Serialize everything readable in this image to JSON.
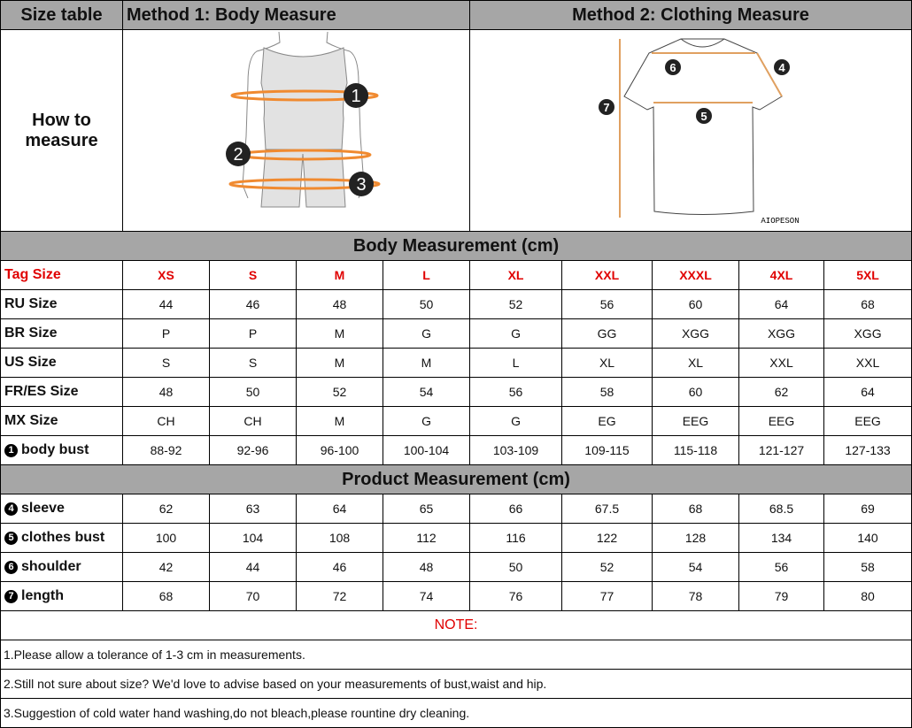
{
  "header": {
    "corner": "Size table",
    "method1": "Method 1: Body  Measure",
    "method2": "Method 2: Clothing Measure",
    "how_to": "How to measure"
  },
  "figure1": {
    "markers": [
      "1",
      "2",
      "3"
    ]
  },
  "figure2": {
    "markers": [
      "4",
      "5",
      "6",
      "7"
    ],
    "brand": "AIOPESON"
  },
  "body_section": "Body Measurement (cm)",
  "product_section": "Product Measurement (cm)",
  "tag_row": {
    "label": "Tag Size",
    "values": [
      "XS",
      "S",
      "M",
      "L",
      "XL",
      "XXL",
      "XXXL",
      "4XL",
      "5XL"
    ]
  },
  "body_rows": [
    {
      "label": "RU Size",
      "values": [
        "44",
        "46",
        "48",
        "50",
        "52",
        "56",
        "60",
        "64",
        "68"
      ]
    },
    {
      "label": "BR Size",
      "values": [
        "P",
        "P",
        "M",
        "G",
        "G",
        "GG",
        "XGG",
        "XGG",
        "XGG"
      ]
    },
    {
      "label": "US Size",
      "values": [
        "S",
        "S",
        "M",
        "M",
        "L",
        "XL",
        "XL",
        "XXL",
        "XXL"
      ]
    },
    {
      "label": "FR/ES Size",
      "values": [
        "48",
        "50",
        "52",
        "54",
        "56",
        "58",
        "60",
        "62",
        "64"
      ]
    },
    {
      "label": "MX Size",
      "values": [
        "CH",
        "CH",
        "M",
        "G",
        "G",
        "EG",
        "EEG",
        "EEG",
        "EEG"
      ]
    },
    {
      "marker": "1",
      "label": "body bust",
      "values": [
        "88-92",
        "92-96",
        "96-100",
        "100-104",
        "103-109",
        "109-115",
        "115-118",
        "121-127",
        "127-133"
      ]
    }
  ],
  "product_rows": [
    {
      "marker": "4",
      "label": "sleeve",
      "values": [
        "62",
        "63",
        "64",
        "65",
        "66",
        "67.5",
        "68",
        "68.5",
        "69"
      ]
    },
    {
      "marker": "5",
      "label": "clothes bust",
      "values": [
        "100",
        "104",
        "108",
        "112",
        "116",
        "122",
        "128",
        "134",
        "140"
      ]
    },
    {
      "marker": "6",
      "label": "shoulder",
      "values": [
        "42",
        "44",
        "46",
        "48",
        "50",
        "52",
        "54",
        "56",
        "58"
      ]
    },
    {
      "marker": "7",
      "label": "length",
      "values": [
        "68",
        "70",
        "72",
        "74",
        "76",
        "77",
        "78",
        "79",
        "80"
      ]
    }
  ],
  "note": {
    "title": "NOTE:",
    "items": [
      "1.Please allow a tolerance of 1-3 cm in measurements.",
      "2.Still not sure about size? We'd love to advise based on your measurements of bust,waist and hip.",
      "3.Suggestion of cold water hand washing,do not bleach,please rountine dry cleaning."
    ]
  }
}
